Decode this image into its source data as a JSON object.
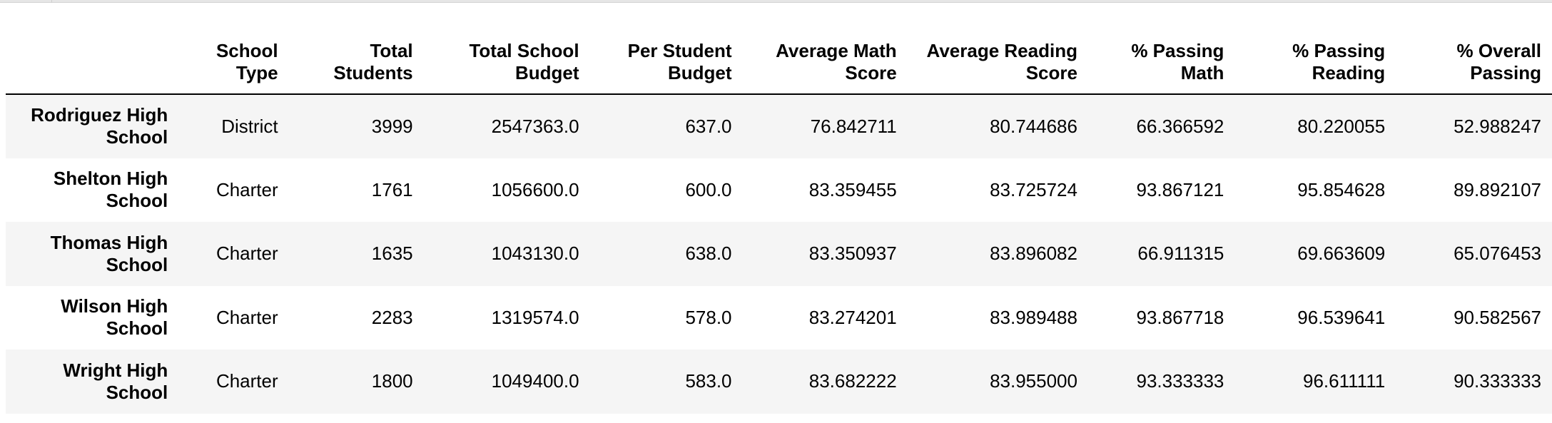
{
  "table": {
    "headers": [
      "",
      "School\nType",
      "Total\nStudents",
      "Total School\nBudget",
      "Per Student\nBudget",
      "Average Math\nScore",
      "Average Reading\nScore",
      "% Passing\nMath",
      "% Passing\nReading",
      "% Overall\nPassing"
    ],
    "rows": [
      {
        "name": "Rodriguez High School",
        "name_lines": [
          "Rodriguez High",
          "School"
        ],
        "cells": [
          "District",
          "3999",
          "2547363.0",
          "637.0",
          "76.842711",
          "80.744686",
          "66.366592",
          "80.220055",
          "52.988247"
        ]
      },
      {
        "name": "Shelton High School",
        "name_lines": [
          "Shelton High",
          "School"
        ],
        "cells": [
          "Charter",
          "1761",
          "1056600.0",
          "600.0",
          "83.359455",
          "83.725724",
          "93.867121",
          "95.854628",
          "89.892107"
        ]
      },
      {
        "name": "Thomas High School",
        "name_lines": [
          "Thomas High",
          "School"
        ],
        "cells": [
          "Charter",
          "1635",
          "1043130.0",
          "638.0",
          "83.350937",
          "83.896082",
          "66.911315",
          "69.663609",
          "65.076453"
        ]
      },
      {
        "name": "Wilson High School",
        "name_lines": [
          "Wilson High",
          "School"
        ],
        "cells": [
          "Charter",
          "2283",
          "1319574.0",
          "578.0",
          "83.274201",
          "83.989488",
          "93.867718",
          "96.539641",
          "90.582567"
        ]
      },
      {
        "name": "Wright High School",
        "name_lines": [
          "Wright High",
          "School"
        ],
        "cells": [
          "Charter",
          "1800",
          "1049400.0",
          "583.0",
          "83.682222",
          "83.955000",
          "93.333333",
          "96.611111",
          "90.333333"
        ]
      }
    ]
  }
}
